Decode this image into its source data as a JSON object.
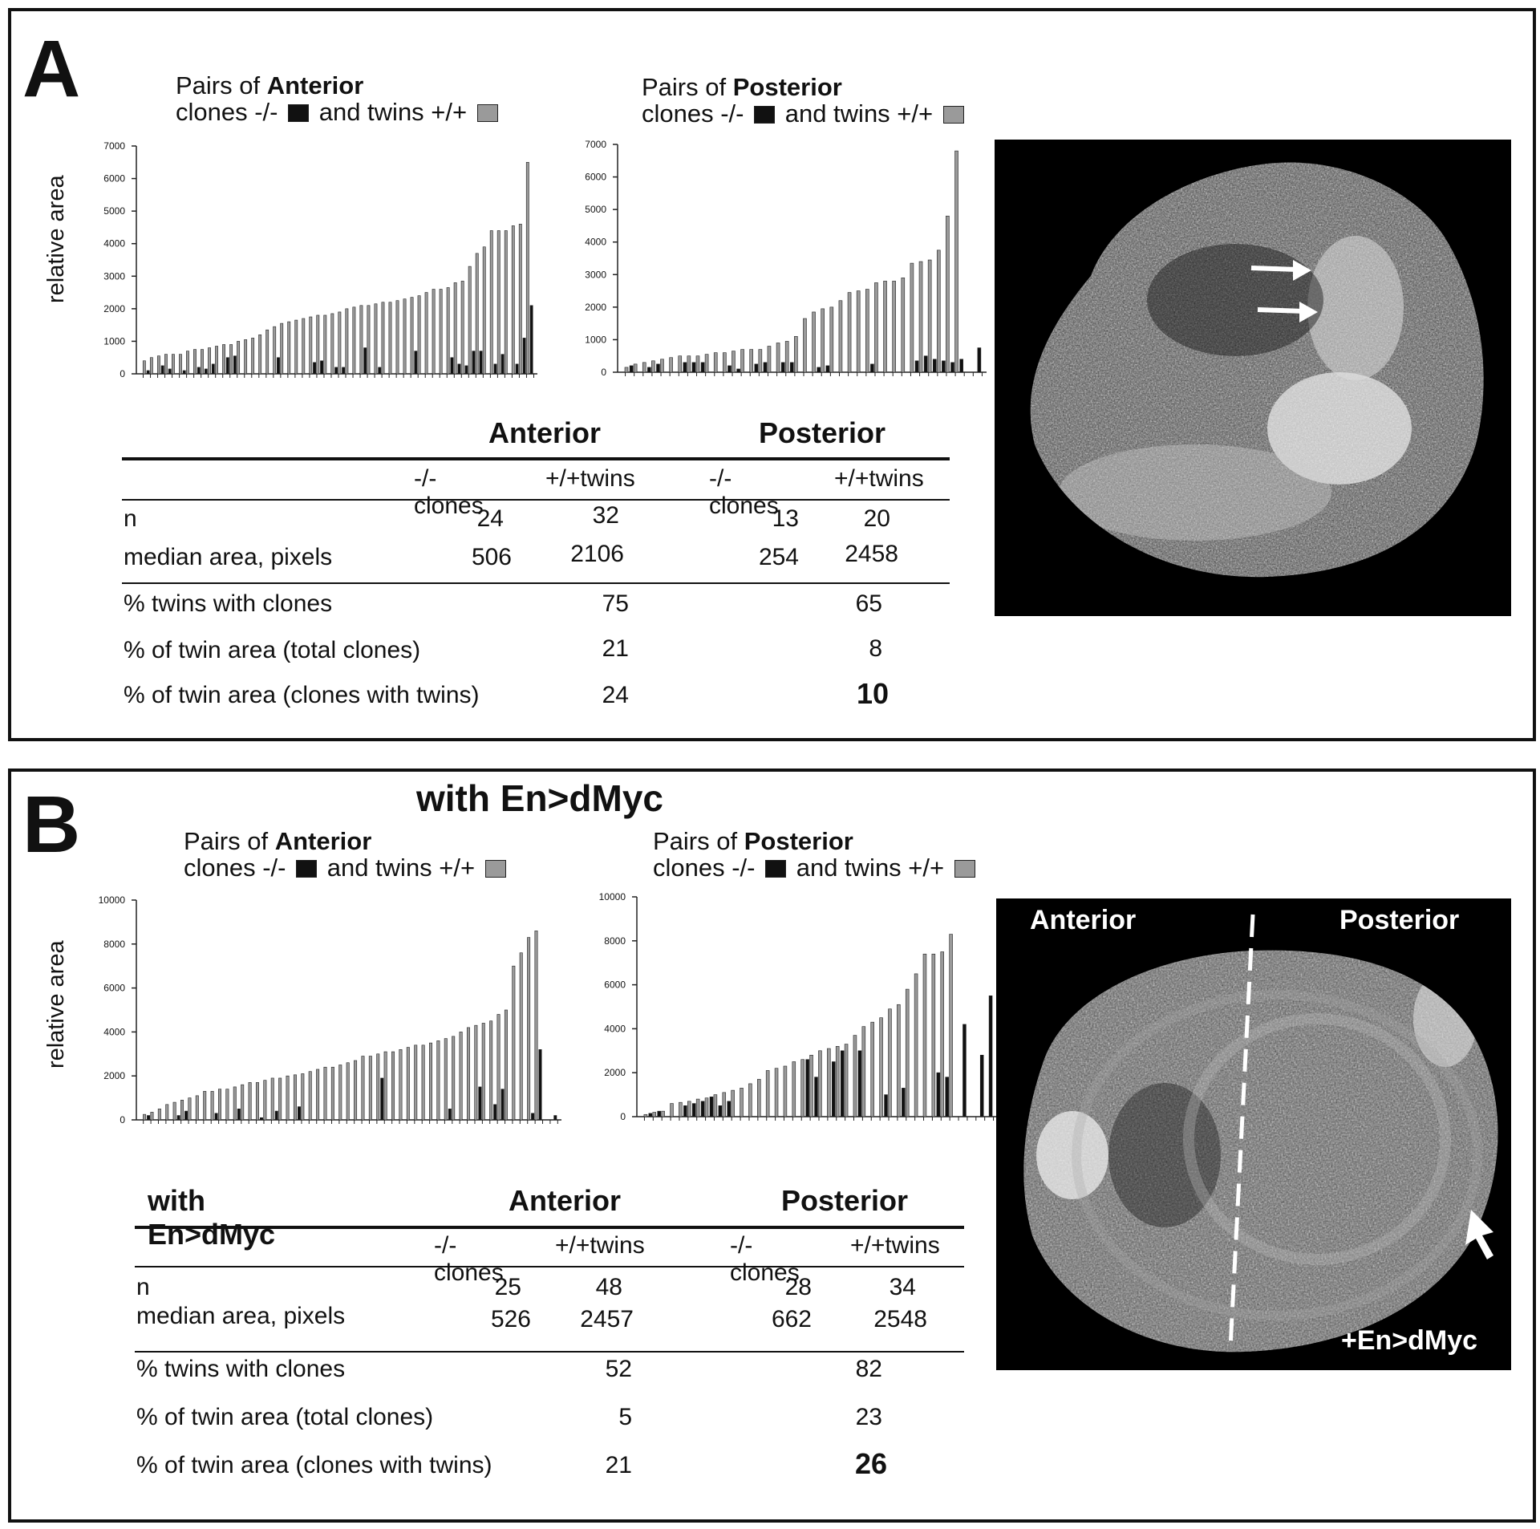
{
  "panel_a": {
    "label": "A",
    "ylabel": "relative area",
    "chart_titles": [
      {
        "pre": "Pairs of ",
        "bold": "Anterior",
        "line2a": "clones -/- ",
        "line2b": " and twins +/+ "
      },
      {
        "pre": "Pairs of ",
        "bold": "Posterior",
        "line2a": "clones -/- ",
        "line2b": " and twins +/+ "
      }
    ],
    "table": {
      "headers": [
        "Anterior",
        "Posterior"
      ],
      "subheaders": [
        "-/-clones",
        "+/+twins",
        "-/-clones",
        "+/+twins"
      ],
      "rows": [
        {
          "label": "n",
          "values": [
            "24",
            "32",
            "13",
            "20"
          ]
        },
        {
          "label": "median area, pixels",
          "values": [
            "506",
            "2106",
            "254",
            "2458"
          ]
        }
      ],
      "summary": [
        {
          "label": "% twins with clones",
          "anterior": "75",
          "posterior": "65"
        },
        {
          "label": "% of twin area (total clones)",
          "anterior": "21",
          "posterior": "8"
        },
        {
          "label": "% of twin area (clones with twins)",
          "anterior": "24",
          "posterior": "10"
        }
      ]
    }
  },
  "panel_b": {
    "label": "B",
    "title": "with En>dMyc",
    "ylabel": "relative area",
    "chart_titles": [
      {
        "pre": "Pairs of ",
        "bold": "Anterior",
        "line2a": "clones -/- ",
        "line2b": " and twins +/+ "
      },
      {
        "pre": "Pairs of ",
        "bold": "Posterior",
        "line2a": "clones -/- ",
        "line2b": " and twins +/+ "
      }
    ],
    "image_labels": {
      "anterior": "Anterior",
      "posterior": "Posterior",
      "corner": "+En>dMyc"
    },
    "table": {
      "title": "with En>dMyc",
      "headers": [
        "Anterior",
        "Posterior"
      ],
      "subheaders": [
        "-/-clones",
        "+/+twins",
        "-/-clones",
        "+/+twins"
      ],
      "rows": [
        {
          "label": "n",
          "values": [
            "25",
            "48",
            "28",
            "34"
          ]
        },
        {
          "label": "median area, pixels",
          "values": [
            "526",
            "2457",
            "662",
            "2548"
          ]
        }
      ],
      "summary": [
        {
          "label": "% twins with clones",
          "anterior": "52",
          "posterior": "82"
        },
        {
          "label": "% of twin area (total clones)",
          "anterior": "5",
          "posterior": "23"
        },
        {
          "label": "% of twin area (clones with twins)",
          "anterior": "21",
          "posterior": "26"
        }
      ]
    }
  },
  "colors": {
    "clone": "#111111",
    "twin": "#9a9a9a"
  },
  "chart_data": [
    {
      "type": "bar",
      "title": "Pairs of Anterior clones -/- and twins +/+",
      "ylabel": "relative area",
      "ylim": [
        0,
        7000
      ],
      "yticks": [
        "0",
        "1000",
        "2000",
        "3000",
        "4000",
        "5000",
        "6000",
        "7000"
      ],
      "series": [
        {
          "name": "clones -/-",
          "values": [
            0,
            100,
            0,
            250,
            150,
            0,
            100,
            0,
            200,
            150,
            300,
            0,
            500,
            550,
            0,
            0,
            0,
            0,
            0,
            500,
            0,
            0,
            0,
            0,
            350,
            400,
            0,
            200,
            200,
            0,
            0,
            800,
            0,
            200,
            0,
            0,
            0,
            0,
            700,
            0,
            0,
            0,
            0,
            500,
            300,
            250,
            700,
            700,
            0,
            300,
            600,
            0,
            300,
            1100,
            2100
          ]
        },
        {
          "name": "twins +/+",
          "values": [
            400,
            500,
            550,
            600,
            600,
            600,
            700,
            750,
            750,
            800,
            850,
            900,
            900,
            1000,
            1050,
            1100,
            1200,
            1350,
            1450,
            1550,
            1600,
            1650,
            1700,
            1750,
            1800,
            1800,
            1850,
            1900,
            2000,
            2050,
            2100,
            2100,
            2150,
            2200,
            2200,
            2250,
            2300,
            2350,
            2400,
            2500,
            2600,
            2600,
            2650,
            2800,
            2850,
            3300,
            3700,
            3900,
            4400,
            4400,
            4400,
            4550,
            4600,
            6500,
            0
          ]
        }
      ]
    },
    {
      "type": "bar",
      "title": "Pairs of Posterior clones -/- and twins +/+",
      "ylim": [
        0,
        7000
      ],
      "yticks": [
        "0",
        "1000",
        "2000",
        "3000",
        "4000",
        "5000",
        "6000",
        "7000"
      ],
      "series": [
        {
          "name": "clones -/-",
          "values": [
            0,
            200,
            0,
            150,
            250,
            0,
            0,
            300,
            300,
            300,
            0,
            0,
            200,
            100,
            0,
            250,
            300,
            0,
            300,
            300,
            0,
            0,
            150,
            200,
            0,
            0,
            0,
            0,
            250,
            0,
            0,
            0,
            0,
            350,
            500,
            400,
            350,
            300,
            400,
            0,
            750
          ]
        },
        {
          "name": "twins +/+",
          "values": [
            150,
            250,
            300,
            350,
            400,
            450,
            500,
            500,
            500,
            550,
            600,
            600,
            650,
            700,
            700,
            700,
            800,
            900,
            950,
            1100,
            1650,
            1850,
            1950,
            2000,
            2200,
            2450,
            2500,
            2550,
            2750,
            2800,
            2800,
            2900,
            3350,
            3400,
            3450,
            3750,
            4800,
            6800,
            0,
            0,
            0
          ]
        }
      ]
    },
    {
      "type": "bar",
      "title": "Pairs of Anterior clones -/- and twins +/+",
      "ylabel": "relative area",
      "ylim": [
        0,
        10000
      ],
      "yticks": [
        "0",
        "2000",
        "4000",
        "6000",
        "8000",
        "10000"
      ],
      "series": [
        {
          "name": "clones -/-",
          "values": [
            0,
            200,
            0,
            0,
            0,
            200,
            400,
            0,
            0,
            0,
            300,
            0,
            0,
            500,
            0,
            0,
            100,
            0,
            400,
            0,
            0,
            600,
            0,
            0,
            0,
            0,
            0,
            0,
            0,
            0,
            0,
            0,
            1900,
            0,
            0,
            0,
            0,
            0,
            0,
            0,
            0,
            500,
            0,
            0,
            0,
            1500,
            0,
            700,
            1400,
            0,
            0,
            0,
            300,
            3200,
            0,
            200
          ]
        },
        {
          "name": "twins +/+",
          "values": [
            250,
            350,
            500,
            700,
            800,
            900,
            1000,
            1100,
            1300,
            1300,
            1400,
            1400,
            1500,
            1600,
            1700,
            1700,
            1800,
            1900,
            1900,
            2000,
            2050,
            2100,
            2200,
            2300,
            2400,
            2400,
            2500,
            2600,
            2700,
            2900,
            2900,
            3000,
            3100,
            3100,
            3200,
            3300,
            3400,
            3400,
            3500,
            3600,
            3700,
            3800,
            4000,
            4200,
            4300,
            4400,
            4500,
            4800,
            5000,
            7000,
            7600,
            8300,
            8600,
            0,
            0,
            0
          ]
        }
      ]
    },
    {
      "type": "bar",
      "title": "Pairs of Posterior clones -/- and twins +/+",
      "ylim": [
        0,
        10000
      ],
      "yticks": [
        "0",
        "2000",
        "4000",
        "6000",
        "8000",
        "10000"
      ],
      "series": [
        {
          "name": "clones -/-",
          "values": [
            0,
            150,
            250,
            0,
            0,
            500,
            600,
            700,
            900,
            500,
            700,
            0,
            0,
            0,
            0,
            0,
            0,
            0,
            0,
            2600,
            1800,
            0,
            2500,
            3000,
            0,
            3000,
            0,
            0,
            1000,
            0,
            1300,
            0,
            0,
            0,
            2000,
            1800,
            0,
            4200,
            0,
            2800,
            5500
          ]
        },
        {
          "name": "twins +/+",
          "values": [
            100,
            200,
            250,
            600,
            650,
            700,
            800,
            850,
            1000,
            1100,
            1200,
            1300,
            1500,
            1700,
            2100,
            2200,
            2300,
            2500,
            2600,
            2800,
            3000,
            3100,
            3200,
            3300,
            3700,
            4100,
            4300,
            4500,
            4900,
            5100,
            5800,
            6500,
            7400,
            7400,
            7500,
            8300,
            0,
            0,
            0,
            0,
            0
          ]
        }
      ]
    }
  ]
}
